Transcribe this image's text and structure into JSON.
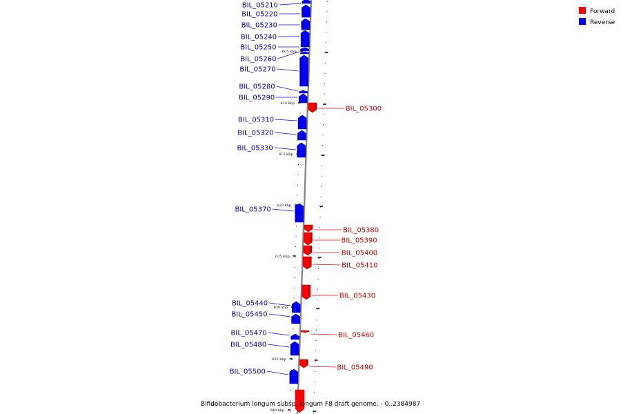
{
  "legend": [
    {
      "label": "Forward",
      "color": "#ff0000"
    },
    {
      "label": "Reverse",
      "color": "#0000ff"
    }
  ],
  "caption": "Bifidobacterium longum subsp. longum F8 draft genome. - 0..2384987",
  "tick_labels": [
    "605 kbp",
    "610 kbp",
    "615 kbp",
    "620 kbp",
    "625 kbp",
    "630 kbp",
    "635 kbp",
    "640 kbp"
  ],
  "genes": [
    {
      "id": "BIL_05210",
      "strand": "reverse"
    },
    {
      "id": "BIL_05220",
      "strand": "reverse"
    },
    {
      "id": "BIL_05230",
      "strand": "reverse"
    },
    {
      "id": "BIL_05240",
      "strand": "reverse"
    },
    {
      "id": "BIL_05250",
      "strand": "reverse"
    },
    {
      "id": "BIL_05260",
      "strand": "reverse"
    },
    {
      "id": "BIL_05270",
      "strand": "reverse"
    },
    {
      "id": "BIL_05280",
      "strand": "reverse"
    },
    {
      "id": "BIL_05290",
      "strand": "reverse"
    },
    {
      "id": "BIL_05300",
      "strand": "forward"
    },
    {
      "id": "BIL_05310",
      "strand": "reverse"
    },
    {
      "id": "BIL_05320",
      "strand": "reverse"
    },
    {
      "id": "BIL_05330",
      "strand": "reverse"
    },
    {
      "id": "BIL_05370",
      "strand": "reverse"
    },
    {
      "id": "BIL_05380",
      "strand": "forward"
    },
    {
      "id": "BIL_05390",
      "strand": "forward"
    },
    {
      "id": "BIL_05400",
      "strand": "forward"
    },
    {
      "id": "BIL_05410",
      "strand": "forward"
    },
    {
      "id": "BIL_05430",
      "strand": "forward"
    },
    {
      "id": "BIL_05440",
      "strand": "reverse"
    },
    {
      "id": "BIL_05450",
      "strand": "reverse"
    },
    {
      "id": "BIL_05460",
      "strand": "forward"
    },
    {
      "id": "BIL_05470",
      "strand": "reverse"
    },
    {
      "id": "BIL_05480",
      "strand": "reverse"
    },
    {
      "id": "BIL_05490",
      "strand": "forward"
    },
    {
      "id": "BIL_05500",
      "strand": "reverse"
    }
  ]
}
